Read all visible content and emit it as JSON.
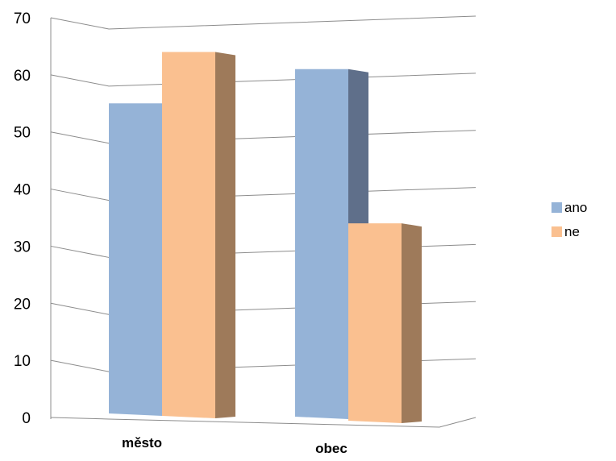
{
  "chart_data": {
    "type": "bar",
    "style": "3d-clustered-column",
    "categories": [
      "město",
      "obec"
    ],
    "series": [
      {
        "name": "ano",
        "values": [
          55,
          61
        ],
        "color": "#95b3d7",
        "side_color": "#5f6f8a"
      },
      {
        "name": "ne",
        "values": [
          64,
          34
        ],
        "color": "#fac090",
        "side_color": "#9e7a5a"
      }
    ],
    "ylim": [
      0,
      70
    ],
    "yticks": [
      "0",
      "10",
      "20",
      "30",
      "40",
      "50",
      "60",
      "70"
    ],
    "grid": true,
    "legend_position": "right",
    "title": "",
    "xlabel": "",
    "ylabel": ""
  }
}
